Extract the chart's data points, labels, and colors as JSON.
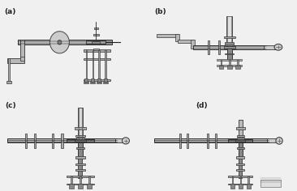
{
  "background_color": "#f0f0f0",
  "label_a": "(a)",
  "label_b": "(b)",
  "label_c": "(c)",
  "label_d": "(d)",
  "label_fontsize": 6.5,
  "lc": "#555555",
  "dc": "#222222",
  "fc_pipe": "#c0c0c0",
  "fc_dark": "#888888",
  "fc_light": "#d8d8d8",
  "fig_width": 3.66,
  "fig_height": 2.36,
  "dpi": 100
}
